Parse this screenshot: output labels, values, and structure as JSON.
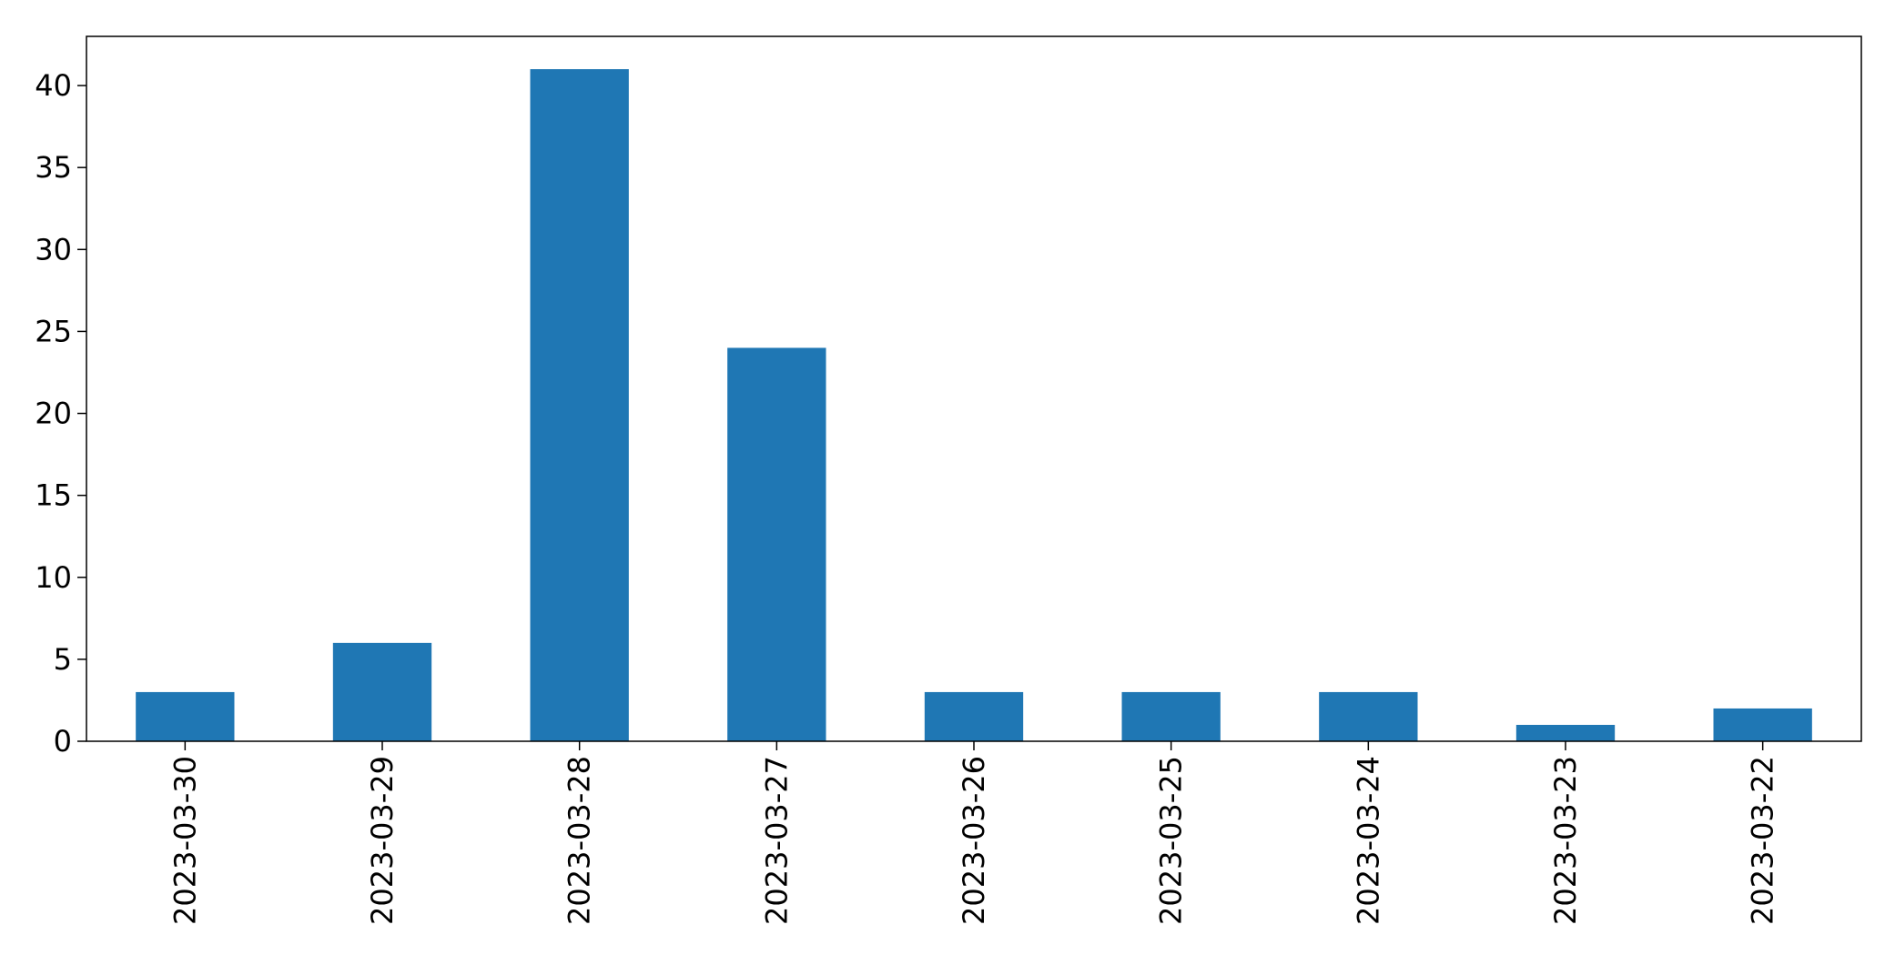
{
  "chart_data": {
    "type": "bar",
    "categories": [
      "2023-03-30",
      "2023-03-29",
      "2023-03-28",
      "2023-03-27",
      "2023-03-26",
      "2023-03-25",
      "2023-03-24",
      "2023-03-23",
      "2023-03-22"
    ],
    "values": [
      3,
      6,
      41,
      24,
      3,
      3,
      3,
      1,
      2
    ],
    "title": "",
    "xlabel": "",
    "ylabel": "",
    "ylim": [
      0,
      43
    ],
    "yticks": [
      0,
      5,
      10,
      15,
      20,
      25,
      30,
      35,
      40
    ],
    "grid": false,
    "legend": "none",
    "colors": {
      "bar": "#1f77b4",
      "axis": "#000000",
      "background": "#ffffff"
    }
  }
}
